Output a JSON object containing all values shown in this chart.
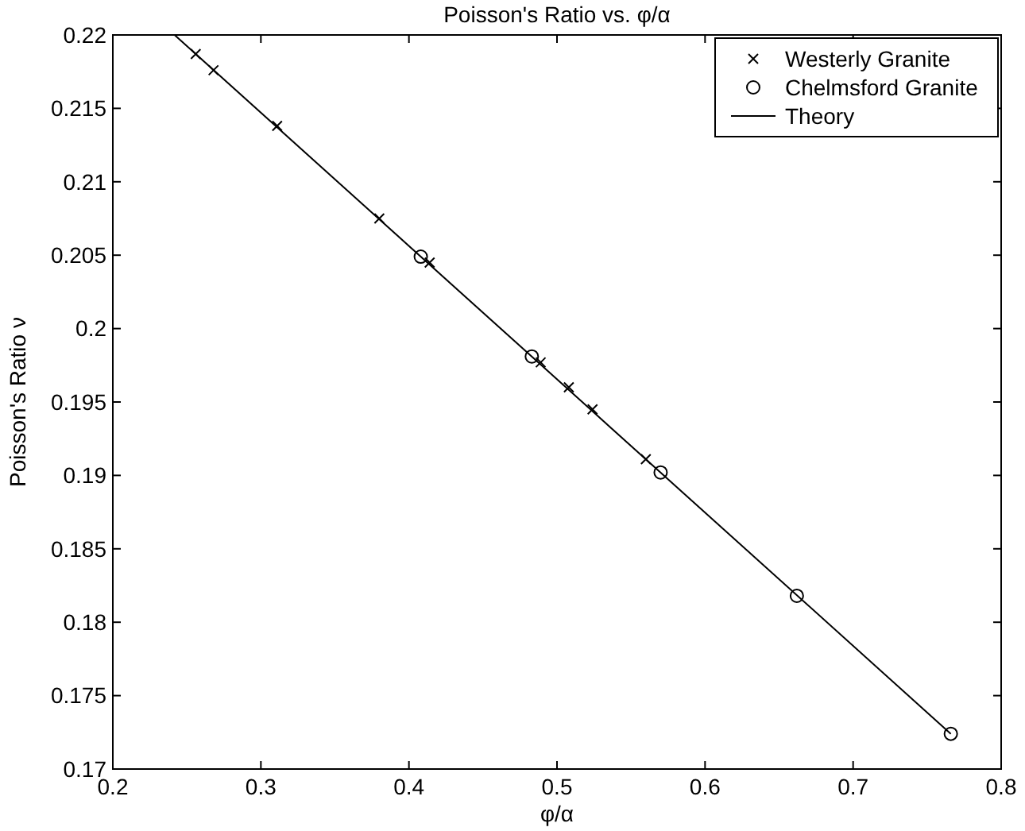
{
  "chart_data": {
    "type": "scatter",
    "title": "Poisson's Ratio vs. φ/α",
    "xlabel": "φ/α",
    "ylabel": "Poisson's Ratio ν",
    "xlim": [
      0.2,
      0.8
    ],
    "xticks": [
      0.2,
      0.3,
      0.4,
      0.5,
      0.6,
      0.7,
      0.8
    ],
    "ylim": [
      0.17,
      0.22
    ],
    "yticks": [
      0.17,
      0.175,
      0.18,
      0.185,
      0.19,
      0.195,
      0.2,
      0.205,
      0.21,
      0.215,
      0.22
    ],
    "legend": "top right",
    "grid": false,
    "series": [
      {
        "name": "Westerly Granite",
        "marker": "cross",
        "color": "#000000",
        "x": [
          0.256,
          0.268,
          0.311,
          0.38,
          0.414,
          0.489,
          0.508,
          0.524,
          0.56
        ],
        "values": [
          0.2187,
          0.2176,
          0.2138,
          0.2075,
          0.2045,
          0.1977,
          0.196,
          0.1945,
          0.1911
        ]
      },
      {
        "name": "Chelmsford Granite",
        "marker": "circle",
        "color": "#000000",
        "x": [
          0.408,
          0.483,
          0.57,
          0.662,
          0.766
        ],
        "values": [
          0.2049,
          0.1981,
          0.1902,
          0.1818,
          0.1724
        ]
      },
      {
        "name": "Theory",
        "type": "line",
        "marker": "none",
        "line_style": "solid",
        "color": "#000000",
        "x": [
          0.2417,
          0.766
        ],
        "values": [
          0.22,
          0.1724
        ]
      }
    ]
  }
}
